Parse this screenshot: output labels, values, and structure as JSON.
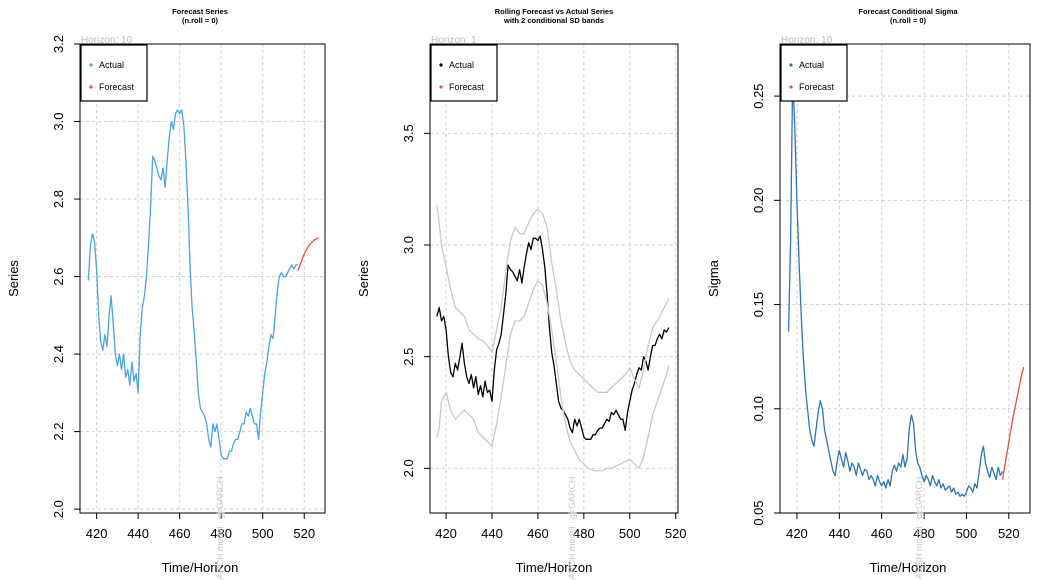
{
  "chart_data": [
    {
      "type": "line",
      "title": "Forecast Series",
      "subtitle": "(n.roll = 0)",
      "horizon_label": "Horizon: 10",
      "xlabel": "Time/Horizon",
      "ylabel": "Series",
      "xlim": [
        412,
        530
      ],
      "ylim": [
        1.99,
        3.2
      ],
      "xticks": [
        420,
        440,
        460,
        480,
        500,
        520
      ],
      "yticks": [
        2.0,
        2.2,
        2.4,
        2.6,
        2.8,
        3.0,
        3.2
      ],
      "grid": true,
      "legend": "top-left",
      "watermark": "GARCH model : gjrGARCH",
      "series": [
        {
          "name": "Actual",
          "color": "#4aa3e8",
          "x": [
            416,
            417,
            418,
            419,
            420,
            421,
            422,
            423,
            424,
            425,
            426,
            427,
            428,
            429,
            430,
            431,
            432,
            433,
            434,
            435,
            436,
            437,
            438,
            439,
            440,
            441,
            442,
            443,
            444,
            445,
            446,
            447,
            448,
            449,
            450,
            451,
            452,
            453,
            454,
            455,
            456,
            457,
            458,
            459,
            460,
            461,
            462,
            463,
            464,
            465,
            466,
            467,
            468,
            469,
            470,
            471,
            472,
            473,
            474,
            475,
            476,
            477,
            478,
            479,
            480,
            481,
            482,
            483,
            484,
            485,
            486,
            487,
            488,
            489,
            490,
            491,
            492,
            493,
            494,
            495,
            496,
            497,
            498,
            499,
            500,
            501,
            502,
            503,
            504,
            505,
            506,
            507,
            508,
            509,
            510,
            511,
            512,
            513,
            514,
            515,
            516,
            517
          ],
          "y": [
            2.59,
            2.68,
            2.71,
            2.69,
            2.62,
            2.5,
            2.43,
            2.41,
            2.45,
            2.42,
            2.5,
            2.55,
            2.48,
            2.4,
            2.37,
            2.4,
            2.36,
            2.4,
            2.34,
            2.36,
            2.32,
            2.38,
            2.33,
            2.35,
            2.3,
            2.45,
            2.52,
            2.55,
            2.6,
            2.68,
            2.78,
            2.91,
            2.9,
            2.88,
            2.86,
            2.85,
            2.88,
            2.83,
            2.9,
            2.96,
            3.0,
            2.98,
            3.02,
            3.03,
            3.02,
            3.03,
            2.99,
            2.9,
            2.78,
            2.63,
            2.52,
            2.46,
            2.38,
            2.3,
            2.26,
            2.25,
            2.24,
            2.22,
            2.18,
            2.16,
            2.22,
            2.2,
            2.22,
            2.18,
            2.14,
            2.13,
            2.13,
            2.13,
            2.15,
            2.15,
            2.17,
            2.18,
            2.18,
            2.2,
            2.22,
            2.22,
            2.25,
            2.24,
            2.26,
            2.24,
            2.22,
            2.22,
            2.18,
            2.25,
            2.3,
            2.35,
            2.38,
            2.42,
            2.45,
            2.44,
            2.5,
            2.56,
            2.6,
            2.61,
            2.6,
            2.6,
            2.61,
            2.62,
            2.63,
            2.62,
            2.63,
            2.63
          ]
        },
        {
          "name": "Forecast",
          "color": "#e8503a",
          "x": [
            517,
            518,
            519,
            520,
            521,
            522,
            523,
            524,
            525,
            526,
            527
          ],
          "y": [
            2.615,
            2.63,
            2.645,
            2.658,
            2.668,
            2.678,
            2.685,
            2.69,
            2.695,
            2.698,
            2.7
          ]
        }
      ]
    },
    {
      "type": "line",
      "title": "Rolling Forecast vs Actual Series",
      "subtitle": "with 2 conditional SD bands",
      "horizon_label": "Horizon: 1",
      "xlabel": "Time/Horizon",
      "ylabel": "Series",
      "xlim": [
        413,
        521
      ],
      "ylim": [
        1.8,
        3.9
      ],
      "xticks": [
        420,
        440,
        460,
        480,
        500,
        520
      ],
      "yticks": [
        2.0,
        2.5,
        3.0,
        3.5
      ],
      "grid": true,
      "legend": "top-left",
      "watermark": "GARCH model : gjrGARCH",
      "series": [
        {
          "name": "Actual",
          "color": "#000000",
          "x": [
            416,
            417,
            418,
            419,
            420,
            421,
            422,
            423,
            424,
            425,
            426,
            427,
            428,
            429,
            430,
            431,
            432,
            433,
            434,
            435,
            436,
            437,
            438,
            439,
            440,
            441,
            442,
            443,
            444,
            445,
            446,
            447,
            448,
            449,
            450,
            451,
            452,
            453,
            454,
            455,
            456,
            457,
            458,
            459,
            460,
            461,
            462,
            463,
            464,
            465,
            466,
            467,
            468,
            469,
            470,
            471,
            472,
            473,
            474,
            475,
            476,
            477,
            478,
            479,
            480,
            481,
            482,
            483,
            484,
            485,
            486,
            487,
            488,
            489,
            490,
            491,
            492,
            493,
            494,
            495,
            496,
            497,
            498,
            499,
            500,
            501,
            502,
            503,
            504,
            505,
            506,
            507,
            508,
            509,
            510,
            511,
            512,
            513,
            514,
            515,
            516,
            517
          ],
          "y": [
            2.68,
            2.72,
            2.66,
            2.68,
            2.62,
            2.5,
            2.43,
            2.41,
            2.47,
            2.44,
            2.5,
            2.56,
            2.47,
            2.41,
            2.38,
            2.42,
            2.36,
            2.41,
            2.33,
            2.37,
            2.32,
            2.39,
            2.34,
            2.35,
            2.3,
            2.44,
            2.53,
            2.56,
            2.6,
            2.69,
            2.78,
            2.91,
            2.89,
            2.88,
            2.86,
            2.84,
            2.89,
            2.83,
            2.9,
            2.96,
            3.01,
            2.98,
            3.03,
            3.03,
            3.02,
            3.04,
            2.98,
            2.9,
            2.78,
            2.63,
            2.52,
            2.46,
            2.38,
            2.3,
            2.27,
            2.26,
            2.24,
            2.22,
            2.18,
            2.16,
            2.22,
            2.19,
            2.22,
            2.18,
            2.14,
            2.13,
            2.13,
            2.13,
            2.15,
            2.15,
            2.17,
            2.18,
            2.18,
            2.2,
            2.22,
            2.21,
            2.25,
            2.24,
            2.26,
            2.24,
            2.22,
            2.22,
            2.17,
            2.25,
            2.3,
            2.35,
            2.38,
            2.42,
            2.45,
            2.44,
            2.5,
            2.48,
            2.44,
            2.5,
            2.55,
            2.55,
            2.58,
            2.6,
            2.58,
            2.62,
            2.61,
            2.63
          ]
        },
        {
          "name": "Forecast",
          "color": "#e8503a",
          "x": [],
          "y": []
        },
        {
          "name": "",
          "color": "#c8c8c8",
          "x": [
            416,
            417,
            418,
            420,
            422,
            424,
            426,
            428,
            430,
            432,
            434,
            436,
            438,
            440,
            442,
            444,
            446,
            448,
            450,
            452,
            454,
            456,
            458,
            460,
            462,
            464,
            466,
            468,
            470,
            472,
            474,
            476,
            478,
            480,
            482,
            484,
            486,
            488,
            490,
            492,
            494,
            496,
            498,
            500,
            502,
            504,
            506,
            508,
            510,
            512,
            514,
            516,
            517
          ],
          "y": [
            3.18,
            3.1,
            3.0,
            2.9,
            2.8,
            2.72,
            2.7,
            2.68,
            2.62,
            2.6,
            2.58,
            2.57,
            2.55,
            2.52,
            2.62,
            2.72,
            2.88,
            3.02,
            3.08,
            3.05,
            3.05,
            3.1,
            3.14,
            3.16,
            3.14,
            3.08,
            2.92,
            2.8,
            2.66,
            2.56,
            2.48,
            2.44,
            2.42,
            2.4,
            2.38,
            2.36,
            2.34,
            2.34,
            2.34,
            2.36,
            2.38,
            2.4,
            2.42,
            2.45,
            2.4,
            2.36,
            2.44,
            2.55,
            2.63,
            2.66,
            2.7,
            2.74,
            2.76
          ]
        },
        {
          "name": "",
          "color": "#c8c8c8",
          "x": [
            416,
            417,
            418,
            420,
            422,
            424,
            426,
            428,
            430,
            432,
            434,
            436,
            438,
            440,
            442,
            444,
            446,
            448,
            450,
            452,
            454,
            456,
            458,
            460,
            462,
            464,
            466,
            468,
            470,
            472,
            474,
            476,
            478,
            480,
            482,
            484,
            486,
            488,
            490,
            492,
            494,
            496,
            498,
            500,
            502,
            504,
            506,
            508,
            510,
            512,
            514,
            516,
            517
          ],
          "y": [
            2.14,
            2.18,
            2.3,
            2.34,
            2.26,
            2.22,
            2.24,
            2.26,
            2.24,
            2.22,
            2.16,
            2.14,
            2.12,
            2.1,
            2.2,
            2.32,
            2.46,
            2.6,
            2.66,
            2.66,
            2.68,
            2.74,
            2.8,
            2.84,
            2.82,
            2.74,
            2.62,
            2.48,
            2.32,
            2.2,
            2.12,
            2.08,
            2.04,
            2.02,
            2.0,
            1.99,
            1.99,
            1.99,
            2.0,
            2.0,
            2.01,
            2.02,
            2.03,
            2.04,
            2.02,
            2.0,
            2.05,
            2.14,
            2.24,
            2.3,
            2.36,
            2.42,
            2.46
          ]
        }
      ]
    },
    {
      "type": "line",
      "title": "Forecast Conditional Sigma",
      "subtitle": "(n.roll = 0)",
      "horizon_label": "Horizon: 10",
      "xlabel": "Time/Horizon",
      "ylabel": "Sigma",
      "xlim": [
        412,
        530
      ],
      "ylim": [
        0.05,
        0.275
      ],
      "xticks": [
        420,
        440,
        460,
        480,
        500,
        520
      ],
      "yticks": [
        0.05,
        0.1,
        0.15,
        0.2,
        0.25
      ],
      "grid": true,
      "legend": "top-left",
      "watermark": "GARCH model : gjrGARCH",
      "series": [
        {
          "name": "Actual",
          "color": "#2e73b8",
          "x": [
            416,
            417,
            418,
            419,
            420,
            421,
            422,
            423,
            424,
            425,
            426,
            427,
            428,
            429,
            430,
            431,
            432,
            433,
            434,
            435,
            436,
            437,
            438,
            439,
            440,
            441,
            442,
            443,
            444,
            445,
            446,
            447,
            448,
            449,
            450,
            451,
            452,
            453,
            454,
            455,
            456,
            457,
            458,
            459,
            460,
            461,
            462,
            463,
            464,
            465,
            466,
            467,
            468,
            469,
            470,
            471,
            472,
            473,
            474,
            475,
            476,
            477,
            478,
            479,
            480,
            481,
            482,
            483,
            484,
            485,
            486,
            487,
            488,
            489,
            490,
            491,
            492,
            493,
            494,
            495,
            496,
            497,
            498,
            499,
            500,
            501,
            502,
            503,
            504,
            505,
            506,
            507,
            508,
            509,
            510,
            511,
            512,
            513,
            514,
            515,
            516,
            517
          ],
          "y": [
            0.137,
            0.18,
            0.26,
            0.235,
            0.2,
            0.17,
            0.145,
            0.125,
            0.11,
            0.1,
            0.09,
            0.085,
            0.082,
            0.09,
            0.098,
            0.104,
            0.1,
            0.09,
            0.085,
            0.08,
            0.075,
            0.07,
            0.068,
            0.075,
            0.08,
            0.076,
            0.072,
            0.079,
            0.075,
            0.07,
            0.074,
            0.072,
            0.068,
            0.074,
            0.071,
            0.068,
            0.071,
            0.07,
            0.066,
            0.068,
            0.066,
            0.063,
            0.068,
            0.065,
            0.063,
            0.065,
            0.062,
            0.066,
            0.063,
            0.07,
            0.073,
            0.07,
            0.074,
            0.072,
            0.078,
            0.072,
            0.076,
            0.09,
            0.097,
            0.093,
            0.08,
            0.074,
            0.072,
            0.068,
            0.065,
            0.068,
            0.066,
            0.063,
            0.068,
            0.065,
            0.063,
            0.066,
            0.062,
            0.064,
            0.061,
            0.062,
            0.063,
            0.06,
            0.062,
            0.059,
            0.06,
            0.058,
            0.059,
            0.058,
            0.06,
            0.063,
            0.062,
            0.06,
            0.064,
            0.062,
            0.07,
            0.078,
            0.082,
            0.074,
            0.07,
            0.067,
            0.072,
            0.069,
            0.066,
            0.072,
            0.068,
            0.07
          ]
        },
        {
          "name": "Forecast",
          "color": "#e8503a",
          "x": [
            517,
            518,
            519,
            520,
            521,
            522,
            523,
            524,
            525,
            526,
            527
          ],
          "y": [
            0.066,
            0.072,
            0.078,
            0.084,
            0.09,
            0.096,
            0.101,
            0.106,
            0.111,
            0.116,
            0.12
          ]
        }
      ]
    }
  ]
}
